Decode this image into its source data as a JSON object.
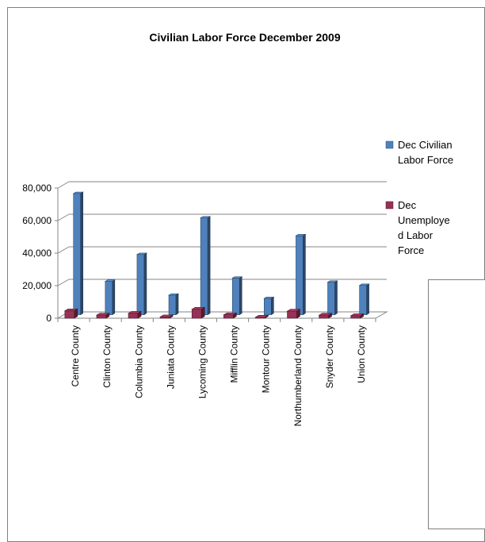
{
  "chart_data": {
    "type": "bar",
    "title": "Civilian Labor Force December 2009",
    "categories": [
      "Centre County",
      "Clinton County",
      "Columbia County",
      "Juniata County",
      "Lycoming County",
      "Mifflin County",
      "Montour County",
      "Northumberland County",
      "Snyder County",
      "Union County"
    ],
    "series": [
      {
        "name": "Dec Civilian Labor Force",
        "color": "#4f81bd",
        "values": [
          74500,
          20500,
          37000,
          12000,
          59500,
          22500,
          10000,
          48500,
          20000,
          18000
        ]
      },
      {
        "name": "Dec Unemployed Labor Force",
        "color": "#953255",
        "values": [
          4500,
          1900,
          3000,
          800,
          5500,
          2100,
          600,
          4300,
          1900,
          1500
        ]
      }
    ],
    "y_ticks": [
      "0",
      "20,000",
      "40,000",
      "60,000",
      "80,000"
    ],
    "ylim": [
      0,
      80000
    ],
    "grid": true,
    "legend_position": "right",
    "legend_lines": [
      [
        "Dec Civilian",
        "Labor Force"
      ],
      [
        "Dec",
        "Unemploye",
        "d Labor",
        "Force"
      ]
    ]
  }
}
